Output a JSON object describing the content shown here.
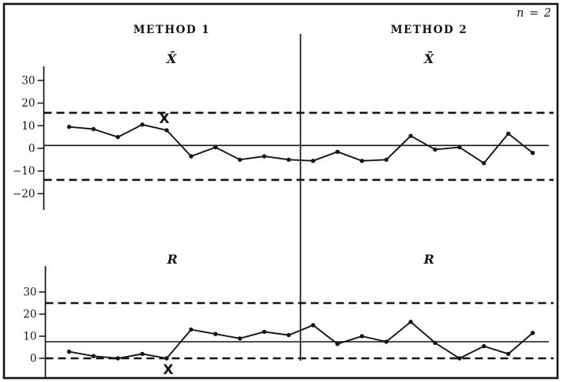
{
  "figure_meta": {
    "sample_size_note": "n = 2",
    "panel_headings": [
      "METHOD 1",
      "METHOD 2"
    ],
    "ink_color": "#151515",
    "paper_color": "#ffffff"
  },
  "chart_data": [
    {
      "id": "xbar",
      "type": "line",
      "title": "X̄",
      "panels": [
        "METHOD 1",
        "METHOD 2"
      ],
      "x": [
        1,
        2,
        3,
        4,
        5,
        6,
        7,
        8,
        9,
        10,
        11,
        12,
        13,
        14,
        15,
        16,
        17,
        18,
        19,
        20
      ],
      "series": [
        {
          "name": "METHOD 1",
          "values": [
            9.5,
            8.5,
            5,
            10.5,
            8,
            -3.5,
            0.5,
            -5,
            -3.5,
            -5
          ]
        },
        {
          "name": "METHOD 2",
          "values": [
            -5.5,
            -1.5,
            -5.5,
            -5,
            5.5,
            -0.5,
            0.5,
            -6.5,
            6.5,
            -2
          ]
        }
      ],
      "center_line": 1.3,
      "upper_control_limit": 15.7,
      "lower_control_limit": -13.9,
      "yticks": [
        30,
        20,
        10,
        0,
        -10,
        -20
      ],
      "ylim": [
        -27,
        36
      ],
      "grid": false,
      "legend": "none",
      "out_of_control_mark": {
        "symbol": "X",
        "subgroup": 5,
        "placement": "above-point"
      }
    },
    {
      "id": "r",
      "type": "line",
      "title": "R",
      "panels": [
        "METHOD 1",
        "METHOD 2"
      ],
      "x": [
        1,
        2,
        3,
        4,
        5,
        6,
        7,
        8,
        9,
        10,
        11,
        12,
        13,
        14,
        15,
        16,
        17,
        18,
        19,
        20
      ],
      "series": [
        {
          "name": "METHOD 1",
          "values": [
            3,
            1,
            0,
            2,
            0,
            13,
            11,
            9,
            12,
            10.5
          ]
        },
        {
          "name": "METHOD 2",
          "values": [
            15,
            6.5,
            10,
            7.5,
            16.5,
            7,
            0,
            5.5,
            2,
            11.5
          ]
        }
      ],
      "center_line": 7.5,
      "upper_control_limit": 25,
      "lower_control_limit": 0,
      "yticks": [
        30,
        20,
        10,
        0
      ],
      "ylim": [
        -9,
        42
      ],
      "grid": false,
      "legend": "none",
      "out_of_control_mark": {
        "symbol": "X",
        "subgroup": 5,
        "placement": "below-point"
      }
    }
  ]
}
